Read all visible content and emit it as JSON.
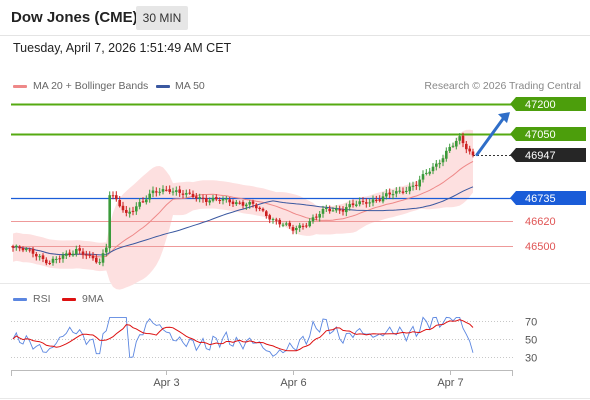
{
  "header": {
    "title": "Dow Jones (CME)",
    "timeframe": "30 MIN",
    "datetime": "Tuesday, April 7, 2026 1:51:49 AM CET"
  },
  "legend": {
    "ma20_label": "MA 20 + Bollinger Bands",
    "ma50_label": "MA 50",
    "copyright": "Research © 2026 Trading Central"
  },
  "colors": {
    "up_candle": "#3a9a3a",
    "down_candle": "#cc2020",
    "ma20": "#ee8888",
    "ma50": "#3a58a0",
    "bollinger_fill": "#fde0e0",
    "resistance": "#55aa11",
    "support": "#ee9999",
    "pivot": "#1a5cd8",
    "arrow": "#2f6ec8",
    "rsi": "#5b86e0",
    "rsi_ma": "#dd1111"
  },
  "oscillator": {
    "rsi_label": "RSI",
    "ma_label": "9MA"
  },
  "chart_data": [
    {
      "type": "candlestick",
      "title": "Dow Jones (CME) 30 MIN",
      "ylim": [
        46340,
        47245
      ],
      "x_tick_labels": [
        "Apr 3",
        "Apr 6",
        "Apr 7"
      ],
      "levels": [
        {
          "name": "resistance-2",
          "value": 47200,
          "label": "47200",
          "kind": "resistance"
        },
        {
          "name": "resistance-1",
          "value": 47050,
          "label": "47050",
          "kind": "resistance"
        },
        {
          "name": "last-price",
          "value": 46947,
          "label": "46947",
          "kind": "last"
        },
        {
          "name": "pivot",
          "value": 46735,
          "label": "46735",
          "kind": "pivot"
        },
        {
          "name": "support-1",
          "value": 46620,
          "label": "46620",
          "kind": "support"
        },
        {
          "name": "support-2",
          "value": 46500,
          "label": "46500",
          "kind": "support"
        }
      ],
      "forecast_arrow": {
        "from": 46950,
        "to": 47180
      }
    },
    {
      "type": "line",
      "title": "RSI",
      "ylim": [
        20,
        80
      ],
      "y_ticks": [
        70,
        50,
        30
      ],
      "series": [
        {
          "name": "RSI"
        },
        {
          "name": "9MA"
        }
      ]
    }
  ]
}
